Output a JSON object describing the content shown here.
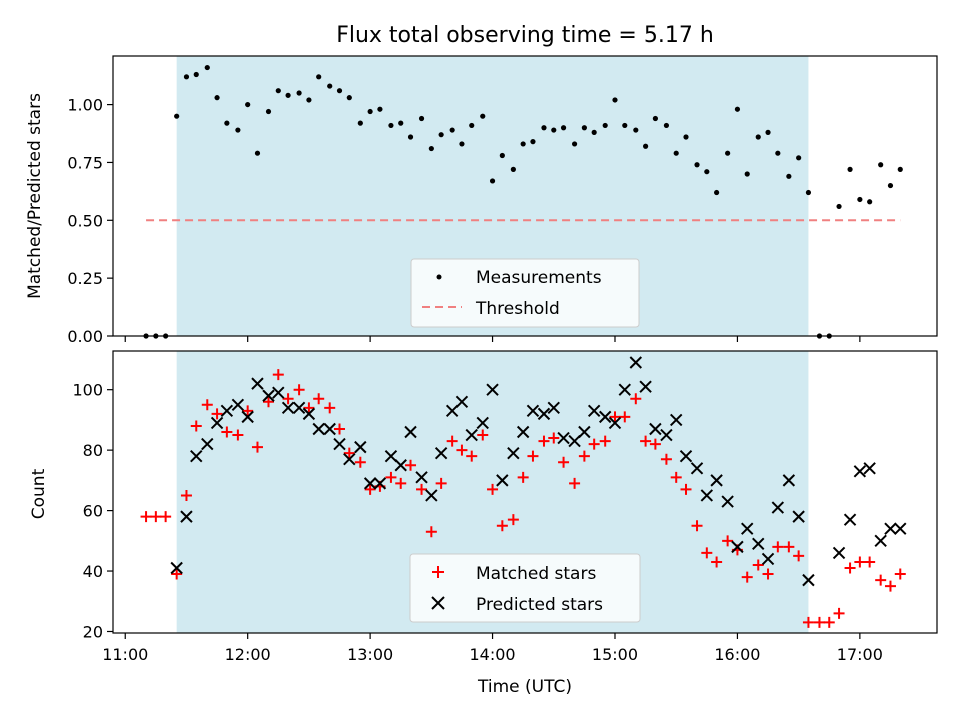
{
  "title": "Flux total observing time = 5.17 h",
  "colors": {
    "shade": "#add8e6",
    "measurement": "#000000",
    "threshold": "#f08080",
    "matched": "#ff0000",
    "predicted": "#000000"
  },
  "chart_data": [
    {
      "type": "scatter",
      "title": "Flux total observing time = 5.17 h",
      "xlabel": "",
      "ylabel": "Matched/Predicted stars",
      "x_unit": "hours UTC",
      "xlim": [
        10.9,
        17.63
      ],
      "ylim": [
        0.0,
        1.21
      ],
      "x_ticks": [
        11,
        12,
        13,
        14,
        15,
        16,
        17
      ],
      "y_ticks": [
        0.0,
        0.25,
        0.5,
        0.75,
        1.0
      ],
      "y_tick_labels": [
        "0.00",
        "0.25",
        "0.50",
        "0.75",
        "1.00"
      ],
      "shaded_span": [
        11.42,
        16.58
      ],
      "legend": {
        "position": "lower center",
        "entries": [
          "Measurements",
          "Threshold"
        ]
      },
      "threshold": {
        "name": "Threshold",
        "x": [
          11.17,
          17.33
        ],
        "y": 0.5
      },
      "series": [
        {
          "name": "Measurements",
          "points": [
            [
              11.17,
              0.0
            ],
            [
              11.25,
              0.0
            ],
            [
              11.33,
              0.0
            ],
            [
              11.42,
              0.95
            ],
            [
              11.5,
              1.12
            ],
            [
              11.58,
              1.13
            ],
            [
              11.67,
              1.16
            ],
            [
              11.75,
              1.03
            ],
            [
              11.83,
              0.92
            ],
            [
              11.92,
              0.89
            ],
            [
              12.0,
              1.0
            ],
            [
              12.08,
              0.79
            ],
            [
              12.17,
              0.97
            ],
            [
              12.25,
              1.06
            ],
            [
              12.33,
              1.04
            ],
            [
              12.42,
              1.05
            ],
            [
              12.5,
              1.02
            ],
            [
              12.58,
              1.12
            ],
            [
              12.67,
              1.08
            ],
            [
              12.75,
              1.06
            ],
            [
              12.83,
              1.03
            ],
            [
              12.92,
              0.92
            ],
            [
              13.0,
              0.97
            ],
            [
              13.08,
              0.98
            ],
            [
              13.17,
              0.91
            ],
            [
              13.25,
              0.92
            ],
            [
              13.33,
              0.86
            ],
            [
              13.42,
              0.94
            ],
            [
              13.5,
              0.81
            ],
            [
              13.58,
              0.87
            ],
            [
              13.67,
              0.89
            ],
            [
              13.75,
              0.83
            ],
            [
              13.83,
              0.91
            ],
            [
              13.92,
              0.95
            ],
            [
              14.0,
              0.67
            ],
            [
              14.08,
              0.78
            ],
            [
              14.17,
              0.72
            ],
            [
              14.25,
              0.83
            ],
            [
              14.33,
              0.84
            ],
            [
              14.42,
              0.9
            ],
            [
              14.5,
              0.89
            ],
            [
              14.58,
              0.9
            ],
            [
              14.67,
              0.83
            ],
            [
              14.75,
              0.9
            ],
            [
              14.83,
              0.88
            ],
            [
              14.92,
              0.91
            ],
            [
              15.0,
              1.02
            ],
            [
              15.08,
              0.91
            ],
            [
              15.17,
              0.89
            ],
            [
              15.25,
              0.82
            ],
            [
              15.33,
              0.94
            ],
            [
              15.42,
              0.91
            ],
            [
              15.5,
              0.79
            ],
            [
              15.58,
              0.86
            ],
            [
              15.67,
              0.74
            ],
            [
              15.75,
              0.71
            ],
            [
              15.83,
              0.62
            ],
            [
              15.92,
              0.79
            ],
            [
              16.0,
              0.98
            ],
            [
              16.08,
              0.7
            ],
            [
              16.17,
              0.86
            ],
            [
              16.25,
              0.88
            ],
            [
              16.33,
              0.79
            ],
            [
              16.42,
              0.69
            ],
            [
              16.5,
              0.77
            ],
            [
              16.58,
              0.62
            ],
            [
              16.67,
              0.0
            ],
            [
              16.75,
              0.0
            ],
            [
              16.83,
              0.56
            ],
            [
              16.92,
              0.72
            ],
            [
              17.0,
              0.59
            ],
            [
              17.08,
              0.58
            ],
            [
              17.17,
              0.74
            ],
            [
              17.25,
              0.65
            ],
            [
              17.33,
              0.72
            ]
          ]
        }
      ]
    },
    {
      "type": "scatter",
      "title": "",
      "xlabel": "Time (UTC)",
      "ylabel": "Count",
      "x_unit": "hours UTC",
      "xlim": [
        10.9,
        17.63
      ],
      "ylim": [
        19.5,
        112.8
      ],
      "x_ticks": [
        11,
        12,
        13,
        14,
        15,
        16,
        17
      ],
      "x_tick_labels": [
        "11:00",
        "12:00",
        "13:00",
        "14:00",
        "15:00",
        "16:00",
        "17:00"
      ],
      "y_ticks": [
        20,
        40,
        60,
        80,
        100
      ],
      "y_tick_labels": [
        "20",
        "40",
        "60",
        "80",
        "100"
      ],
      "shaded_span": [
        11.42,
        16.58
      ],
      "legend": {
        "position": "lower center",
        "entries": [
          "Matched stars",
          "Predicted stars"
        ]
      },
      "series": [
        {
          "name": "Matched stars",
          "marker": "plus",
          "points": [
            [
              11.17,
              58
            ],
            [
              11.25,
              58
            ],
            [
              11.33,
              58
            ],
            [
              11.42,
              39
            ],
            [
              11.5,
              65
            ],
            [
              11.58,
              88
            ],
            [
              11.67,
              95
            ],
            [
              11.75,
              92
            ],
            [
              11.83,
              86
            ],
            [
              11.92,
              85
            ],
            [
              12.0,
              93
            ],
            [
              12.08,
              81
            ],
            [
              12.17,
              96
            ],
            [
              12.25,
              105
            ],
            [
              12.33,
              97
            ],
            [
              12.42,
              100
            ],
            [
              12.5,
              94
            ],
            [
              12.58,
              97
            ],
            [
              12.67,
              94
            ],
            [
              12.75,
              87
            ],
            [
              12.83,
              79
            ],
            [
              12.92,
              76
            ],
            [
              13.0,
              67
            ],
            [
              13.08,
              68
            ],
            [
              13.17,
              71
            ],
            [
              13.25,
              69
            ],
            [
              13.33,
              75
            ],
            [
              13.42,
              67
            ],
            [
              13.5,
              53
            ],
            [
              13.58,
              69
            ],
            [
              13.67,
              83
            ],
            [
              13.75,
              80
            ],
            [
              13.83,
              78
            ],
            [
              13.92,
              85
            ],
            [
              14.0,
              67
            ],
            [
              14.08,
              55
            ],
            [
              14.17,
              57
            ],
            [
              14.25,
              71
            ],
            [
              14.33,
              78
            ],
            [
              14.42,
              83
            ],
            [
              14.5,
              84
            ],
            [
              14.58,
              76
            ],
            [
              14.67,
              69
            ],
            [
              14.75,
              78
            ],
            [
              14.83,
              82
            ],
            [
              14.92,
              83
            ],
            [
              15.0,
              91
            ],
            [
              15.08,
              91
            ],
            [
              15.17,
              97
            ],
            [
              15.25,
              83
            ],
            [
              15.33,
              82
            ],
            [
              15.42,
              77
            ],
            [
              15.5,
              71
            ],
            [
              15.58,
              67
            ],
            [
              15.67,
              55
            ],
            [
              15.75,
              46
            ],
            [
              15.83,
              43
            ],
            [
              15.92,
              50
            ],
            [
              16.0,
              47
            ],
            [
              16.08,
              38
            ],
            [
              16.17,
              42
            ],
            [
              16.25,
              39
            ],
            [
              16.33,
              48
            ],
            [
              16.42,
              48
            ],
            [
              16.5,
              45
            ],
            [
              16.58,
              23
            ],
            [
              16.67,
              23
            ],
            [
              16.75,
              23
            ],
            [
              16.83,
              26
            ],
            [
              16.92,
              41
            ],
            [
              17.0,
              43
            ],
            [
              17.08,
              43
            ],
            [
              17.17,
              37
            ],
            [
              17.25,
              35
            ],
            [
              17.33,
              39
            ]
          ]
        },
        {
          "name": "Predicted stars",
          "marker": "x",
          "points": [
            [
              11.42,
              41
            ],
            [
              11.5,
              58
            ],
            [
              11.58,
              78
            ],
            [
              11.67,
              82
            ],
            [
              11.75,
              89
            ],
            [
              11.83,
              93
            ],
            [
              11.92,
              95
            ],
            [
              12.0,
              91
            ],
            [
              12.08,
              102
            ],
            [
              12.17,
              98
            ],
            [
              12.25,
              99
            ],
            [
              12.33,
              94
            ],
            [
              12.42,
              94
            ],
            [
              12.5,
              92
            ],
            [
              12.58,
              87
            ],
            [
              12.67,
              87
            ],
            [
              12.75,
              82
            ],
            [
              12.83,
              77
            ],
            [
              12.92,
              81
            ],
            [
              13.0,
              69
            ],
            [
              13.08,
              69
            ],
            [
              13.17,
              78
            ],
            [
              13.25,
              75
            ],
            [
              13.33,
              86
            ],
            [
              13.42,
              71
            ],
            [
              13.5,
              65
            ],
            [
              13.58,
              79
            ],
            [
              13.67,
              93
            ],
            [
              13.75,
              96
            ],
            [
              13.83,
              85
            ],
            [
              13.92,
              89
            ],
            [
              14.0,
              100
            ],
            [
              14.08,
              70
            ],
            [
              14.17,
              79
            ],
            [
              14.25,
              86
            ],
            [
              14.33,
              93
            ],
            [
              14.42,
              92
            ],
            [
              14.5,
              94
            ],
            [
              14.58,
              84
            ],
            [
              14.67,
              83
            ],
            [
              14.75,
              86
            ],
            [
              14.83,
              93
            ],
            [
              14.92,
              91
            ],
            [
              15.0,
              89
            ],
            [
              15.08,
              100
            ],
            [
              15.17,
              109
            ],
            [
              15.25,
              101
            ],
            [
              15.33,
              87
            ],
            [
              15.42,
              85
            ],
            [
              15.5,
              90
            ],
            [
              15.58,
              78
            ],
            [
              15.67,
              74
            ],
            [
              15.75,
              65
            ],
            [
              15.83,
              70
            ],
            [
              15.92,
              63
            ],
            [
              16.0,
              48
            ],
            [
              16.08,
              54
            ],
            [
              16.17,
              49
            ],
            [
              16.25,
              44
            ],
            [
              16.33,
              61
            ],
            [
              16.42,
              70
            ],
            [
              16.5,
              58
            ],
            [
              16.58,
              37
            ],
            [
              16.83,
              46
            ],
            [
              16.92,
              57
            ],
            [
              17.0,
              73
            ],
            [
              17.08,
              74
            ],
            [
              17.17,
              50
            ],
            [
              17.25,
              54
            ],
            [
              17.33,
              54
            ]
          ]
        }
      ]
    }
  ]
}
